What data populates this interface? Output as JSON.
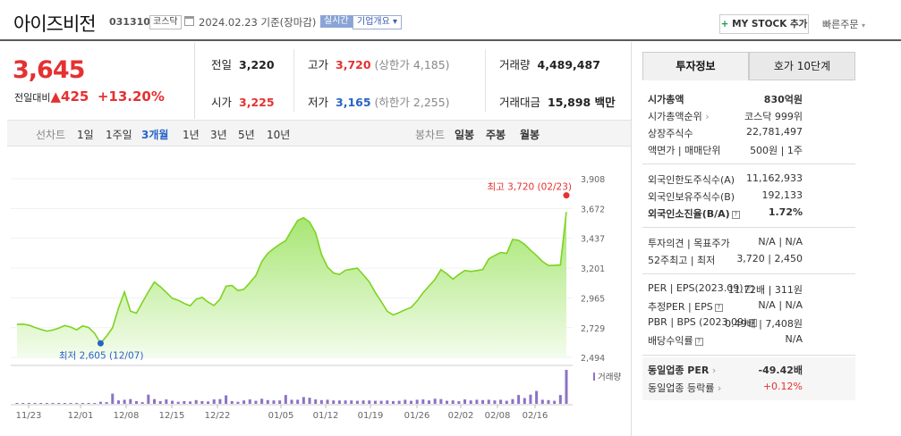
{
  "header": {
    "name": "아이즈비전",
    "code": "031310",
    "market": "코스닥",
    "basis": "2024.02.23 기준(장마감)",
    "realtime": "실시간",
    "overview": "기업개요",
    "mystock_plus": "+",
    "mystock": "MY STOCK 추가",
    "quick_order": "빠른주문"
  },
  "price": {
    "current": "3,645",
    "change_label": "전일대비",
    "change_arrow": "▲",
    "change": "425",
    "rate": "+13.20%"
  },
  "summary": {
    "prev_label": "전일",
    "prev": "3,220",
    "high_label": "고가",
    "high": "3,720",
    "upper_limit": "(상한가 4,185)",
    "volume_label": "거래량",
    "volume": "4,489,487",
    "open_label": "시가",
    "open": "3,225",
    "low_label": "저가",
    "low": "3,165",
    "lower_limit": "(하한가 2,255)",
    "amount_label": "거래대금",
    "amount": "15,898 백만"
  },
  "period": {
    "line_label": "선차트",
    "items": [
      "1일",
      "1주일",
      "3개월",
      "1년",
      "3년",
      "5년",
      "10년"
    ],
    "selected": "3개월",
    "candle_label": "봉차트",
    "candle_items": [
      "일봉",
      "주봉",
      "월봉"
    ]
  },
  "chart_data": {
    "type": "area",
    "color": "#7ed321",
    "ylim": [
      2494,
      3908
    ],
    "yticks": [
      "3,908",
      "3,672",
      "3,437",
      "3,201",
      "2,965",
      "2,729",
      "2,494"
    ],
    "ytick_values": [
      3908,
      3672,
      3437,
      3201,
      2965,
      2729,
      2494
    ],
    "x_labels": [
      "11/23",
      "12/01",
      "12/08",
      "12/15",
      "12/22",
      "01/05",
      "01/12",
      "01/19",
      "01/26",
      "02/02",
      "02/08",
      "02/16"
    ],
    "values": [
      2755,
      2757,
      2749,
      2731,
      2715,
      2702,
      2710,
      2726,
      2746,
      2734,
      2712,
      2743,
      2730,
      2684,
      2605,
      2662,
      2728,
      2886,
      3012,
      2860,
      2844,
      2931,
      3013,
      3090,
      3053,
      3009,
      2962,
      2946,
      2921,
      2902,
      2954,
      2969,
      2931,
      2905,
      2955,
      3057,
      3063,
      3023,
      3033,
      3086,
      3142,
      3253,
      3318,
      3356,
      3390,
      3418,
      3500,
      3577,
      3599,
      3565,
      3480,
      3307,
      3209,
      3162,
      3151,
      3183,
      3192,
      3200,
      3147,
      3091,
      3008,
      2936,
      2859,
      2830,
      2848,
      2871,
      2889,
      2941,
      3005,
      3059,
      3112,
      3188,
      3155,
      3113,
      3150,
      3182,
      3174,
      3181,
      3189,
      3273,
      3301,
      3324,
      3317,
      3427,
      3420,
      3389,
      3342,
      3301,
      3253,
      3221,
      3223,
      3225,
      3645
    ],
    "volume": [
      0.02,
      0.01,
      0.01,
      0.01,
      0.01,
      0.01,
      0.01,
      0.01,
      0.01,
      0.01,
      0.01,
      0.01,
      0.01,
      0.01,
      0.06,
      0.05,
      0.3,
      0.1,
      0.12,
      0.14,
      0.08,
      0.05,
      0.27,
      0.14,
      0.08,
      0.13,
      0.09,
      0.06,
      0.08,
      0.07,
      0.11,
      0.08,
      0.07,
      0.13,
      0.14,
      0.25,
      0.08,
      0.06,
      0.1,
      0.13,
      0.09,
      0.15,
      0.11,
      0.1,
      0.1,
      0.26,
      0.12,
      0.12,
      0.2,
      0.18,
      0.13,
      0.11,
      0.12,
      0.1,
      0.1,
      0.1,
      0.1,
      0.09,
      0.1,
      0.1,
      0.09,
      0.09,
      0.1,
      0.08,
      0.09,
      0.12,
      0.09,
      0.12,
      0.13,
      0.1,
      0.15,
      0.14,
      0.09,
      0.1,
      0.08,
      0.13,
      0.1,
      0.12,
      0.11,
      0.12,
      0.1,
      0.12,
      0.09,
      0.14,
      0.26,
      0.17,
      0.27,
      0.38,
      0.12,
      0.11,
      0.09,
      0.26,
      1.0
    ],
    "volume_label": "거래량",
    "high_annotation": "최고 3,720 (02/23)",
    "low_annotation": "최저 2,605 (12/07)"
  },
  "invest_tabs": [
    "투자정보",
    "호가 10단계"
  ],
  "invest": {
    "g1": [
      [
        "시가총액",
        "830억원"
      ],
      [
        "시가총액순위",
        "코스닥 999위"
      ],
      [
        "상장주식수",
        "22,781,497"
      ],
      [
        "액면가 | 매매단위",
        "500원 | 1주"
      ]
    ],
    "g2": [
      [
        "외국인한도주식수(A)",
        "11,162,933"
      ],
      [
        "외국인보유주식수(B)",
        "192,133"
      ],
      [
        "외국인소진율(B/A)",
        "1.72%"
      ]
    ],
    "g3": [
      [
        "투자의견 | 목표주가",
        "N/A | N/A"
      ],
      [
        "52주최고 | 최저",
        "3,720 | 2,450"
      ]
    ],
    "g4": [
      [
        "PER | EPS(2023.09)",
        "11.72배 | 311원"
      ],
      [
        "추정PER | EPS",
        "N/A | N/A"
      ],
      [
        "PBR | BPS (2023.09)",
        "0.49배 | 7,408원"
      ],
      [
        "배당수익률",
        "N/A"
      ]
    ],
    "g5": [
      [
        "동일업종 PER",
        "-49.42배"
      ],
      [
        "동일업종 등락률",
        "+0.12%"
      ]
    ]
  }
}
